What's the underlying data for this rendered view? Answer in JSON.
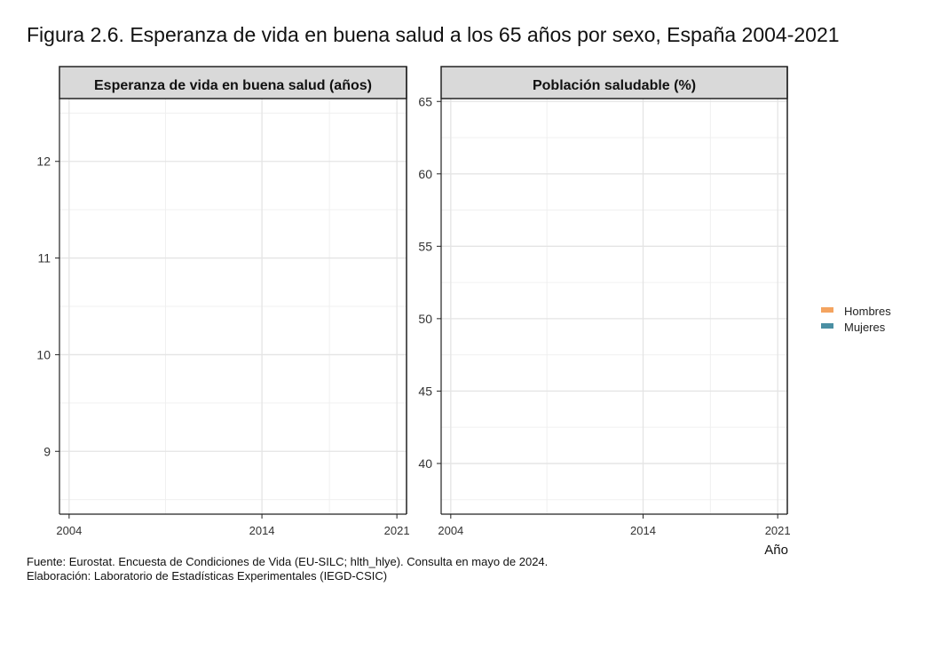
{
  "title": "Figura 2.6. Esperanza de vida en buena salud a los 65 años por sexo, España 2004-2021",
  "caption": {
    "source": "Fuente: Eurostat. Encuesta de Condiciones de Vida (EU-SILC; hlth_hlye). Consulta en mayo de 2024.",
    "elaboration": "Elaboración: Laboratorio de Estadísticas Experimentales (IEGD-CSIC)"
  },
  "chart_data": [
    {
      "type": "line",
      "title": "Esperanza de vida en buena salud (años)",
      "xlabel": "",
      "ylabel": "",
      "xlim": [
        2003.5,
        2021.5
      ],
      "ylim": [
        8.35,
        12.65
      ],
      "x_ticks": [
        2004,
        2014,
        2021
      ],
      "x_tick_labels": [
        "2004",
        "2014",
        "2021"
      ],
      "y_ticks": [
        9,
        10,
        11,
        12
      ],
      "y_tick_labels": [
        "9",
        "10",
        "11",
        "12"
      ],
      "grid": true,
      "series": [
        {
          "name": "Hombres",
          "color": "#F4A460",
          "x": [],
          "y": []
        },
        {
          "name": "Mujeres",
          "color": "#4A8FA3",
          "x": [],
          "y": []
        }
      ]
    },
    {
      "type": "line",
      "title": "Población saludable (%)",
      "xlabel": "Año",
      "ylabel": "",
      "xlim": [
        2003.5,
        2021.5
      ],
      "ylim": [
        36.5,
        65.2
      ],
      "x_ticks": [
        2004,
        2014,
        2021
      ],
      "x_tick_labels": [
        "2004",
        "2014",
        "2021"
      ],
      "y_ticks": [
        40,
        45,
        50,
        55,
        60,
        65
      ],
      "y_tick_labels": [
        "40",
        "45",
        "50",
        "55",
        "60",
        "65"
      ],
      "grid": true,
      "series": [
        {
          "name": "Hombres",
          "color": "#F4A460",
          "x": [],
          "y": []
        },
        {
          "name": "Mujeres",
          "color": "#4A8FA3",
          "x": [],
          "y": []
        }
      ]
    }
  ],
  "legend": {
    "placement": "right",
    "items": [
      {
        "label": "Hombres",
        "color": "#F4A460"
      },
      {
        "label": "Mujeres",
        "color": "#4A8FA3"
      }
    ]
  }
}
